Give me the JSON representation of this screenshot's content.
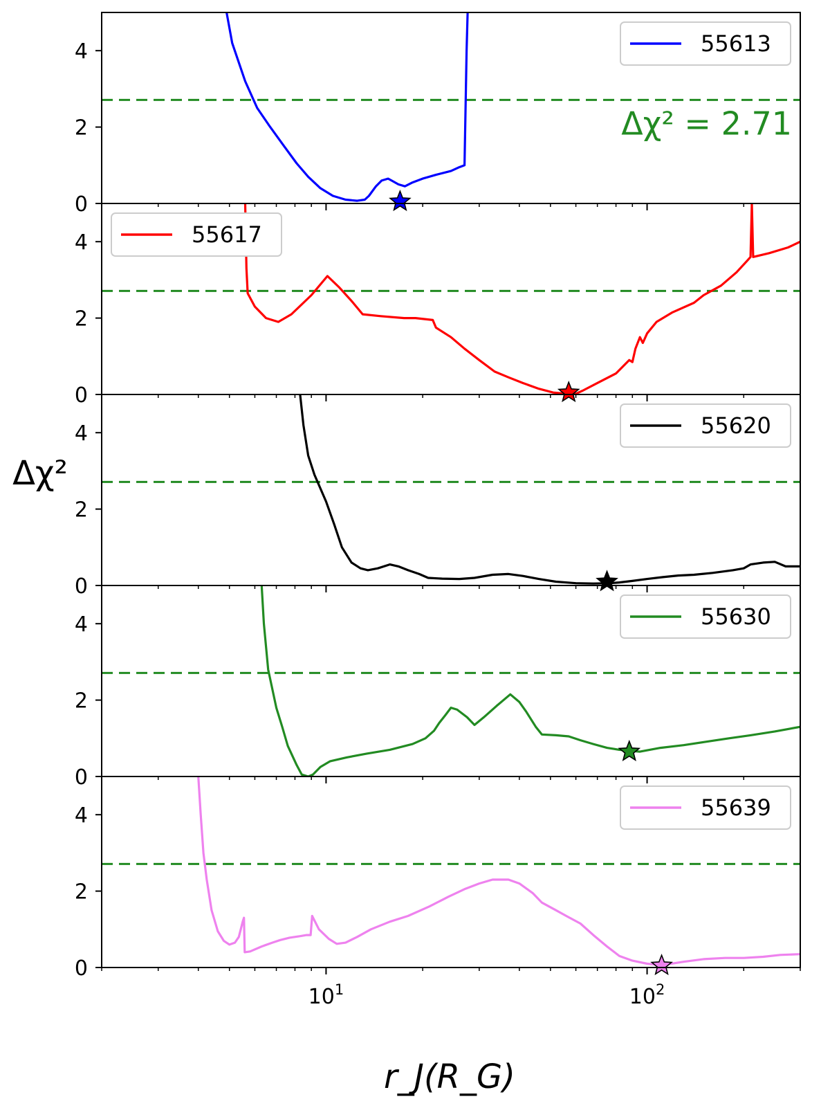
{
  "figure": {
    "ylabel": "Δχ²",
    "xlabel": "r_J(R_G)",
    "threshold_label": "Δχ² = 2.71"
  },
  "chart_data": {
    "type": "line",
    "layout": "stacked-panels-shared-x",
    "x_scale": "log",
    "xlim": [
      2,
      300
    ],
    "ylim": [
      0,
      5
    ],
    "yticks": [
      0,
      2,
      4
    ],
    "xtick_labels": [
      "10^1",
      "10^2"
    ],
    "threshold": 2.71,
    "threshold_color": "#228b22",
    "threshold_label_panel": 0,
    "panels": [
      {
        "name": "55613",
        "color": "#0000ff",
        "legend_position": "top-right",
        "best_fit": {
          "x": 17,
          "y": 0.05
        },
        "points": [
          [
            4.9,
            5.0
          ],
          [
            5.1,
            4.2
          ],
          [
            5.6,
            3.2
          ],
          [
            6.1,
            2.5
          ],
          [
            6.7,
            2.0
          ],
          [
            7.4,
            1.5
          ],
          [
            8.1,
            1.05
          ],
          [
            8.8,
            0.7
          ],
          [
            9.6,
            0.4
          ],
          [
            10.5,
            0.2
          ],
          [
            11.5,
            0.1
          ],
          [
            12.5,
            0.07
          ],
          [
            13.2,
            0.1
          ],
          [
            13.6,
            0.2
          ],
          [
            14.3,
            0.45
          ],
          [
            14.9,
            0.6
          ],
          [
            15.6,
            0.65
          ],
          [
            16.0,
            0.6
          ],
          [
            16.8,
            0.5
          ],
          [
            17.6,
            0.45
          ],
          [
            18.6,
            0.55
          ],
          [
            20,
            0.65
          ],
          [
            22,
            0.75
          ],
          [
            24.5,
            0.85
          ],
          [
            26,
            0.95
          ],
          [
            27,
            1.0
          ],
          [
            27.4,
            4.0
          ],
          [
            27.6,
            5.0
          ]
        ]
      },
      {
        "name": "55617",
        "color": "#ff0000",
        "legend_position": "top-left",
        "best_fit": {
          "x": 57,
          "y": 0.05
        },
        "points": [
          [
            5.6,
            5.0
          ],
          [
            5.65,
            3.3
          ],
          [
            5.7,
            2.65
          ],
          [
            6.0,
            2.3
          ],
          [
            6.5,
            2.0
          ],
          [
            7.1,
            1.9
          ],
          [
            7.8,
            2.1
          ],
          [
            8.5,
            2.4
          ],
          [
            9.0,
            2.6
          ],
          [
            10.1,
            3.1
          ],
          [
            11.0,
            2.8
          ],
          [
            12.0,
            2.45
          ],
          [
            13.0,
            2.1
          ],
          [
            14.8,
            2.05
          ],
          [
            17.5,
            2.0
          ],
          [
            19.0,
            2.0
          ],
          [
            21.5,
            1.95
          ],
          [
            22,
            1.75
          ],
          [
            24.5,
            1.5
          ],
          [
            27,
            1.2
          ],
          [
            30,
            0.9
          ],
          [
            33.5,
            0.6
          ],
          [
            37,
            0.45
          ],
          [
            41,
            0.3
          ],
          [
            46,
            0.15
          ],
          [
            51,
            0.05
          ],
          [
            56,
            0.02
          ],
          [
            60,
            0.02
          ],
          [
            63,
            0.1
          ],
          [
            70,
            0.3
          ],
          [
            80,
            0.55
          ],
          [
            88,
            0.9
          ],
          [
            90,
            0.85
          ],
          [
            92,
            1.2
          ],
          [
            95,
            1.5
          ],
          [
            97,
            1.35
          ],
          [
            100,
            1.6
          ],
          [
            107,
            1.9
          ],
          [
            120,
            2.15
          ],
          [
            140,
            2.4
          ],
          [
            150,
            2.6
          ],
          [
            170,
            2.85
          ],
          [
            190,
            3.2
          ],
          [
            205,
            3.5
          ],
          [
            210,
            3.6
          ],
          [
            212,
            5.0
          ],
          [
            214,
            3.6
          ],
          [
            240,
            3.7
          ],
          [
            275,
            3.85
          ],
          [
            300,
            4.0
          ]
        ]
      },
      {
        "name": "55620",
        "color": "#000000",
        "legend_position": "top-right",
        "best_fit": {
          "x": 75,
          "y": 0.1
        },
        "points": [
          [
            8.3,
            5.0
          ],
          [
            8.5,
            4.2
          ],
          [
            8.8,
            3.4
          ],
          [
            9.2,
            2.9
          ],
          [
            10.0,
            2.2
          ],
          [
            10.6,
            1.6
          ],
          [
            11.2,
            1.0
          ],
          [
            12.0,
            0.6
          ],
          [
            12.8,
            0.45
          ],
          [
            13.5,
            0.4
          ],
          [
            14.5,
            0.45
          ],
          [
            15.8,
            0.55
          ],
          [
            16.8,
            0.5
          ],
          [
            18,
            0.4
          ],
          [
            19.5,
            0.3
          ],
          [
            20.8,
            0.2
          ],
          [
            23,
            0.18
          ],
          [
            26,
            0.17
          ],
          [
            29,
            0.2
          ],
          [
            33,
            0.28
          ],
          [
            37,
            0.3
          ],
          [
            41,
            0.25
          ],
          [
            46,
            0.17
          ],
          [
            52,
            0.1
          ],
          [
            60,
            0.06
          ],
          [
            68,
            0.05
          ],
          [
            77,
            0.06
          ],
          [
            82,
            0.08
          ],
          [
            90,
            0.12
          ],
          [
            100,
            0.17
          ],
          [
            112,
            0.22
          ],
          [
            125,
            0.26
          ],
          [
            140,
            0.28
          ],
          [
            160,
            0.33
          ],
          [
            185,
            0.4
          ],
          [
            200,
            0.45
          ],
          [
            210,
            0.55
          ],
          [
            230,
            0.6
          ],
          [
            250,
            0.62
          ],
          [
            270,
            0.5
          ],
          [
            300,
            0.5
          ]
        ]
      },
      {
        "name": "55630",
        "color": "#228b22",
        "legend_position": "top-right",
        "best_fit": {
          "x": 88,
          "y": 0.65
        },
        "points": [
          [
            6.3,
            5.0
          ],
          [
            6.4,
            4.0
          ],
          [
            6.6,
            2.8
          ],
          [
            7.0,
            1.8
          ],
          [
            7.3,
            1.3
          ],
          [
            7.6,
            0.8
          ],
          [
            8.1,
            0.3
          ],
          [
            8.4,
            0.05
          ],
          [
            8.8,
            0.0
          ],
          [
            9.1,
            0.05
          ],
          [
            9.6,
            0.25
          ],
          [
            10.3,
            0.4
          ],
          [
            11.6,
            0.5
          ],
          [
            13.4,
            0.6
          ],
          [
            15.8,
            0.7
          ],
          [
            18.6,
            0.85
          ],
          [
            20.4,
            1.0
          ],
          [
            21.7,
            1.2
          ],
          [
            22.5,
            1.4
          ],
          [
            23.5,
            1.6
          ],
          [
            24.5,
            1.8
          ],
          [
            25.6,
            1.75
          ],
          [
            27.5,
            1.55
          ],
          [
            29,
            1.35
          ],
          [
            31,
            1.55
          ],
          [
            34,
            1.85
          ],
          [
            37.5,
            2.15
          ],
          [
            40,
            1.95
          ],
          [
            42,
            1.7
          ],
          [
            45,
            1.3
          ],
          [
            47,
            1.1
          ],
          [
            52,
            1.08
          ],
          [
            57,
            1.05
          ],
          [
            62,
            0.95
          ],
          [
            68,
            0.85
          ],
          [
            75,
            0.75
          ],
          [
            82,
            0.7
          ],
          [
            95,
            0.65
          ],
          [
            110,
            0.75
          ],
          [
            130,
            0.82
          ],
          [
            150,
            0.9
          ],
          [
            180,
            1.0
          ],
          [
            210,
            1.08
          ],
          [
            250,
            1.18
          ],
          [
            300,
            1.3
          ]
        ]
      },
      {
        "name": "55639",
        "color": "#ee82ee",
        "legend_position": "top-right",
        "best_fit": {
          "x": 111,
          "y": 0.05
        },
        "points": [
          [
            4.0,
            5.0
          ],
          [
            4.07,
            4.0
          ],
          [
            4.15,
            3.0
          ],
          [
            4.25,
            2.3
          ],
          [
            4.4,
            1.5
          ],
          [
            4.6,
            0.95
          ],
          [
            4.8,
            0.7
          ],
          [
            5.0,
            0.6
          ],
          [
            5.2,
            0.65
          ],
          [
            5.35,
            0.8
          ],
          [
            5.5,
            1.2
          ],
          [
            5.55,
            1.3
          ],
          [
            5.58,
            0.4
          ],
          [
            5.8,
            0.42
          ],
          [
            6.3,
            0.55
          ],
          [
            6.8,
            0.65
          ],
          [
            7.2,
            0.72
          ],
          [
            7.7,
            0.78
          ],
          [
            8.3,
            0.82
          ],
          [
            8.7,
            0.85
          ],
          [
            8.95,
            0.85
          ],
          [
            9.05,
            1.35
          ],
          [
            9.5,
            1.0
          ],
          [
            10.2,
            0.75
          ],
          [
            10.8,
            0.62
          ],
          [
            11.5,
            0.65
          ],
          [
            12.5,
            0.8
          ],
          [
            13.8,
            1.0
          ],
          [
            15.8,
            1.2
          ],
          [
            18,
            1.35
          ],
          [
            21,
            1.6
          ],
          [
            24,
            1.85
          ],
          [
            27,
            2.05
          ],
          [
            30,
            2.2
          ],
          [
            33,
            2.3
          ],
          [
            37,
            2.3
          ],
          [
            40,
            2.2
          ],
          [
            44,
            1.95
          ],
          [
            47,
            1.7
          ],
          [
            52,
            1.5
          ],
          [
            56,
            1.35
          ],
          [
            62,
            1.15
          ],
          [
            68,
            0.85
          ],
          [
            75,
            0.55
          ],
          [
            82,
            0.3
          ],
          [
            90,
            0.18
          ],
          [
            100,
            0.1
          ],
          [
            111,
            0.06
          ],
          [
            115,
            0.08
          ],
          [
            130,
            0.15
          ],
          [
            150,
            0.22
          ],
          [
            175,
            0.25
          ],
          [
            200,
            0.25
          ],
          [
            230,
            0.28
          ],
          [
            260,
            0.33
          ],
          [
            300,
            0.35
          ]
        ]
      }
    ]
  }
}
